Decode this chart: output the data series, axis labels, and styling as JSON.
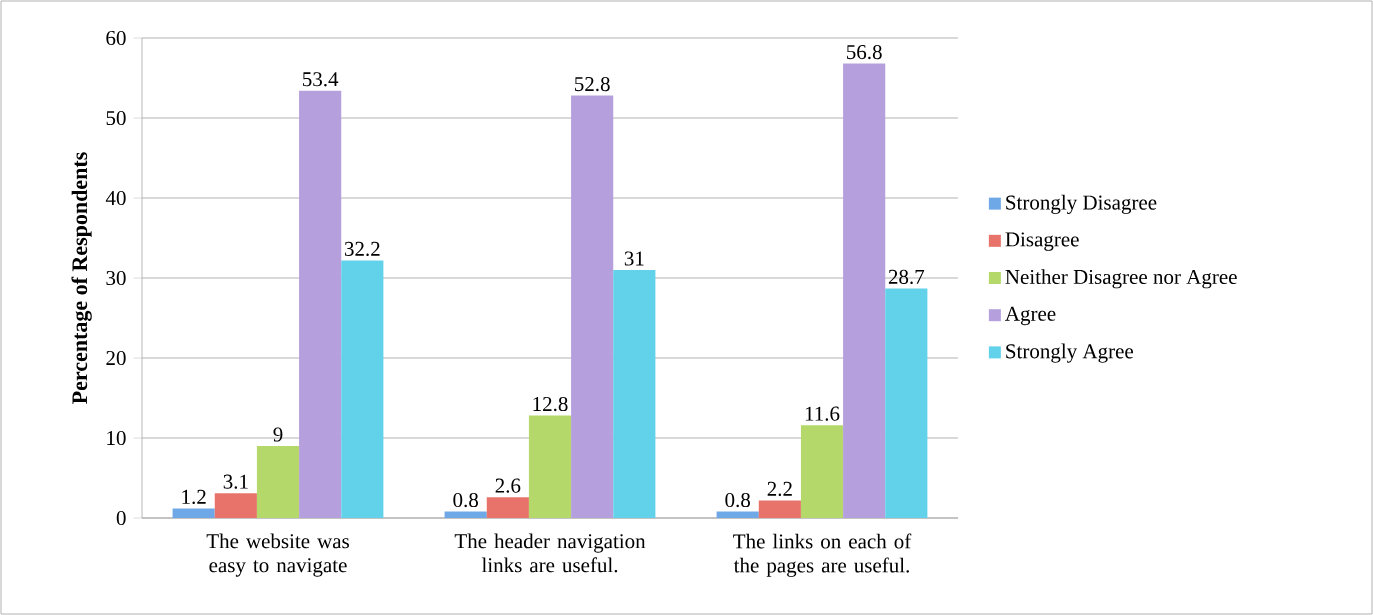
{
  "chart_data": {
    "type": "bar",
    "ylabel": "Percentage of Respondents",
    "categories": [
      "The website was easy to navigate",
      "The header navigation links are useful.",
      "The links on each of the pages are useful."
    ],
    "series": [
      {
        "name": "Strongly Disagree",
        "color": "#6fa8e6",
        "values": [
          1.2,
          0.8,
          0.8
        ]
      },
      {
        "name": "Disagree",
        "color": "#e8736b",
        "values": [
          3.1,
          2.6,
          2.2
        ]
      },
      {
        "name": "Neither Disagree nor Agree",
        "color": "#b4d86a",
        "values": [
          9,
          12.8,
          11.6
        ]
      },
      {
        "name": "Agree",
        "color": "#b59fdc",
        "values": [
          53.4,
          52.8,
          56.8
        ]
      },
      {
        "name": "Strongly Agree",
        "color": "#62d1ea",
        "values": [
          32.2,
          31,
          28.7
        ]
      }
    ],
    "ylim": [
      0,
      60
    ],
    "yticks": [
      0,
      10,
      20,
      30,
      40,
      50,
      60
    ],
    "grid": "y",
    "legend": "right",
    "data_labels": true
  }
}
